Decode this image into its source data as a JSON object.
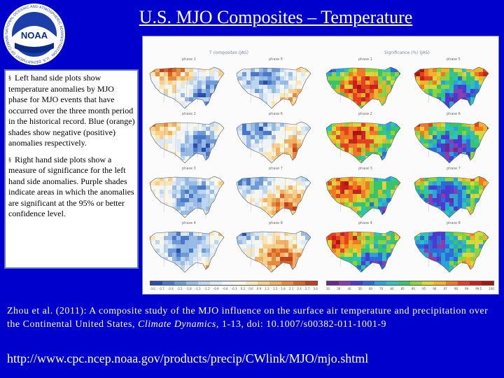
{
  "slide": {
    "title": "U.S. MJO Composites – Temperature",
    "logo": {
      "center_text": "NOAA",
      "ring_text": "NATIONAL OCEANIC AND ATMOSPHERIC ADMINISTRATION · U.S. DEPARTMENT OF COMMERCE",
      "colors": {
        "sky": "#1b3fa8",
        "ring": "#ffffff",
        "gull": "#ffffff",
        "sea": "#0a2a88"
      }
    },
    "notes": {
      "items": [
        {
          "bullet": "§",
          "text": "Left hand side plots show temperature anomalies by MJO phase for MJO events that have occurred over the three month period in the historical record. Blue (orange) shades show negative (positive) anomalies respectively."
        },
        {
          "bullet": "§",
          "text": "Right hand side plots show a measure of significance for the left hand side anomalies. Purple shades indicate areas in which the anomalies are significant at the 95% or better confidence level."
        }
      ]
    },
    "figure": {
      "left_heading": "T composites (JAS)",
      "right_heading": "Significance (%) (JAS)",
      "left_panels": [
        "phase 1",
        "phase 2",
        "phase 3",
        "phase 4"
      ],
      "left_panels_b": [
        "phase 5",
        "phase 6",
        "phase 7",
        "phase 8"
      ],
      "right_panels": [
        "phase 1",
        "phase 2",
        "phase 3",
        "phase 4"
      ],
      "right_panels_b": [
        "phase 5",
        "phase 6",
        "phase 7",
        "phase 8"
      ],
      "left_colorbar_labels": [
        "-3.0",
        "-2.7",
        "-2.4",
        "-2.1",
        "-1.8",
        "-1.5",
        "-1.2",
        "-0.9",
        "-0.6",
        "-0.3",
        "0.3",
        "0.6",
        "0.9",
        "1.2",
        "1.5",
        "1.8",
        "2.1",
        "2.4",
        "2.7",
        "3.0"
      ],
      "right_colorbar_labels": [
        "20",
        "30",
        "40",
        "50",
        "60",
        "70",
        "80",
        "85",
        "90",
        "95",
        "96",
        "97",
        "98",
        "99",
        "99.5",
        "100"
      ],
      "colors": {
        "anomaly_scale": [
          "#2b4fa8",
          "#4a78c8",
          "#6e9ad8",
          "#98bce6",
          "#bcd6ef",
          "#dbe9f6",
          "#eef4fa",
          "#fbf7e6",
          "#fbe6b8",
          "#f8cf8a",
          "#f2b062",
          "#e88b3c",
          "#d96428",
          "#c2401c"
        ],
        "significance_scale": [
          "#6a2a8a",
          "#8a3cb0",
          "#4a3ad0",
          "#2c6ad8",
          "#2aa4d8",
          "#2cc4b8",
          "#38c468",
          "#8ad43c",
          "#d8d83a",
          "#f2b22c",
          "#f07a24",
          "#e64020",
          "#c8201a",
          "#a8180a"
        ]
      }
    },
    "reference": {
      "text_before_journal": "Zhou et al. (2011): A composite study of the MJO influence on the surface air temperature and precipitation over the Continental United States, ",
      "journal": "Climate Dynamics",
      "text_after_journal": ", 1-13, doi: 10.1007/s00382-011-1001-9"
    },
    "url": "http://www.cpc.ncep.noaa.gov/products/precip/CWlink/MJO/mjo.shtml"
  }
}
